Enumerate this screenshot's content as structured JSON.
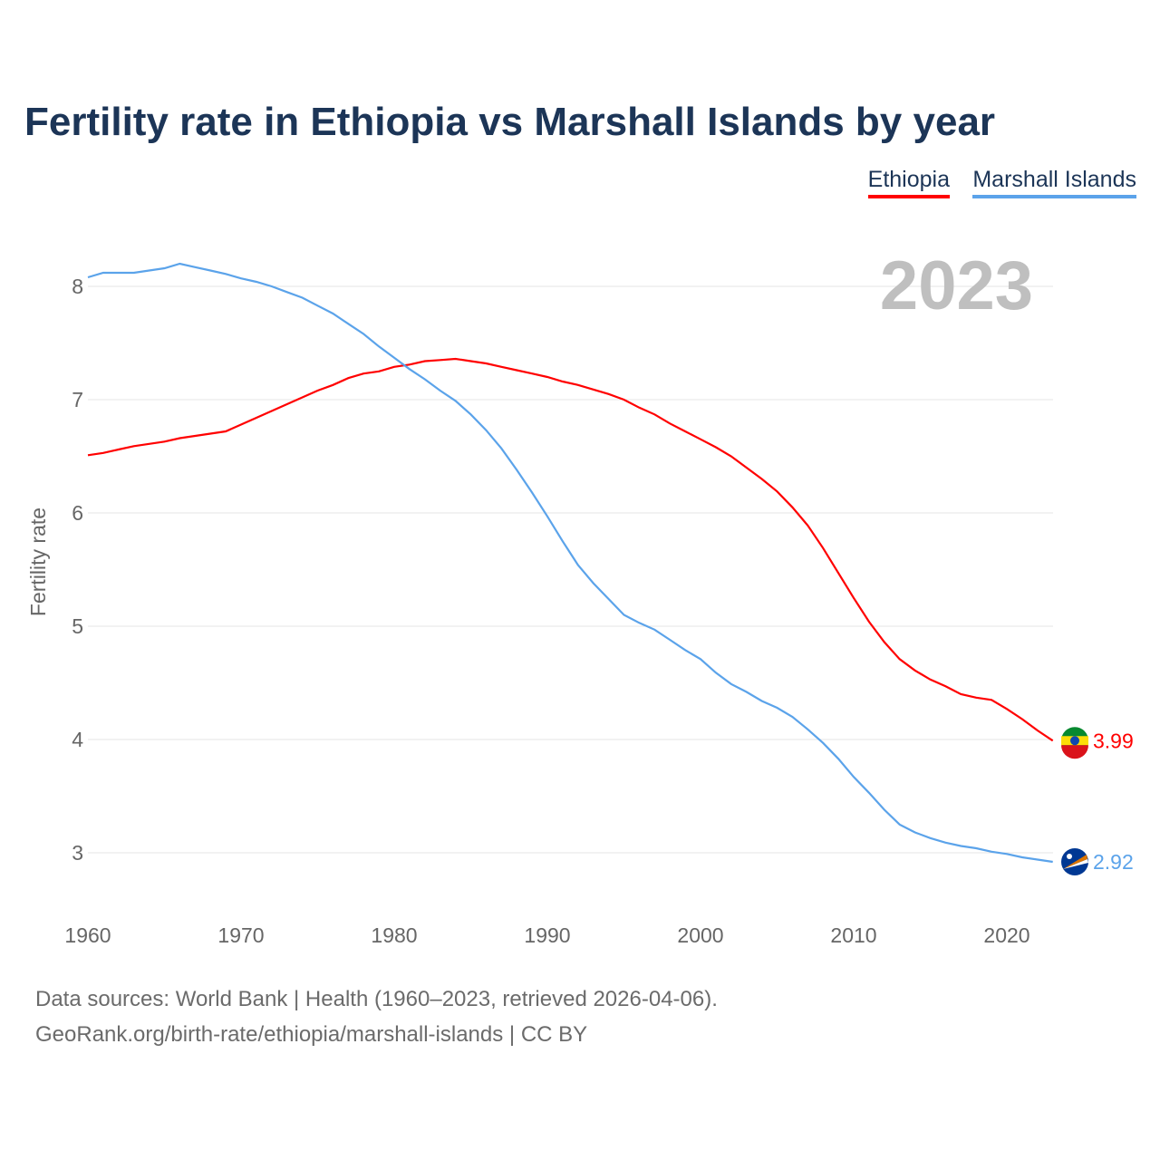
{
  "chart_data": {
    "type": "line",
    "title": "Fertility rate in Ethiopia vs Marshall Islands by year",
    "xlabel": "",
    "ylabel": "Fertility rate",
    "xlim": [
      1960,
      2023
    ],
    "ylim": [
      2.5,
      8.5
    ],
    "xticks": [
      1960,
      1970,
      1980,
      1990,
      2000,
      2010,
      2020
    ],
    "yticks": [
      3,
      4,
      5,
      6,
      7,
      8
    ],
    "grid": true,
    "legend_position": "top-right",
    "year_label": "2023",
    "x": [
      1960,
      1961,
      1962,
      1963,
      1964,
      1965,
      1966,
      1967,
      1968,
      1969,
      1970,
      1971,
      1972,
      1973,
      1974,
      1975,
      1976,
      1977,
      1978,
      1979,
      1980,
      1981,
      1982,
      1983,
      1984,
      1985,
      1986,
      1987,
      1988,
      1989,
      1990,
      1991,
      1992,
      1993,
      1994,
      1995,
      1996,
      1997,
      1998,
      1999,
      2000,
      2001,
      2002,
      2003,
      2004,
      2005,
      2006,
      2007,
      2008,
      2009,
      2010,
      2011,
      2012,
      2013,
      2014,
      2015,
      2016,
      2017,
      2018,
      2019,
      2020,
      2021,
      2022,
      2023
    ],
    "series": [
      {
        "name": "Ethiopia",
        "color": "#ff0000",
        "end_label": "3.99",
        "values": [
          6.51,
          6.53,
          6.56,
          6.59,
          6.61,
          6.63,
          6.66,
          6.68,
          6.7,
          6.72,
          6.78,
          6.84,
          6.9,
          6.96,
          7.02,
          7.08,
          7.13,
          7.19,
          7.23,
          7.25,
          7.29,
          7.31,
          7.34,
          7.35,
          7.36,
          7.34,
          7.32,
          7.29,
          7.26,
          7.23,
          7.2,
          7.16,
          7.13,
          7.09,
          7.05,
          7.0,
          6.93,
          6.87,
          6.79,
          6.72,
          6.65,
          6.58,
          6.5,
          6.4,
          6.3,
          6.19,
          6.05,
          5.89,
          5.69,
          5.47,
          5.25,
          5.04,
          4.86,
          4.71,
          4.61,
          4.53,
          4.47,
          4.4,
          4.37,
          4.35,
          4.27,
          4.18,
          4.08,
          3.99
        ]
      },
      {
        "name": "Marshall Islands",
        "color": "#5ba3ea",
        "end_label": "2.92",
        "values": [
          8.08,
          8.12,
          8.12,
          8.12,
          8.14,
          8.16,
          8.2,
          8.17,
          8.14,
          8.11,
          8.07,
          8.04,
          8.0,
          7.95,
          7.9,
          7.83,
          7.76,
          7.67,
          7.58,
          7.47,
          7.37,
          7.27,
          7.18,
          7.08,
          6.99,
          6.87,
          6.73,
          6.57,
          6.38,
          6.18,
          5.97,
          5.75,
          5.54,
          5.38,
          5.24,
          5.1,
          5.03,
          4.97,
          4.88,
          4.79,
          4.71,
          4.59,
          4.49,
          4.42,
          4.34,
          4.28,
          4.2,
          4.09,
          3.97,
          3.83,
          3.67,
          3.53,
          3.38,
          3.25,
          3.18,
          3.13,
          3.09,
          3.06,
          3.04,
          3.01,
          2.99,
          2.96,
          2.94,
          2.92
        ]
      }
    ]
  },
  "footer": {
    "line1": "Data sources: World Bank | Health (1960–2023, retrieved 2026-04-06).",
    "line2": "GeoRank.org/birth-rate/ethiopia/marshall-islands | CC BY"
  }
}
